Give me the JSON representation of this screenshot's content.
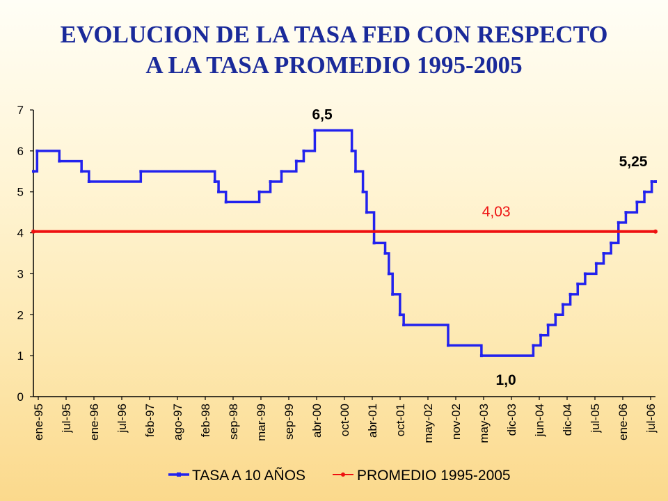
{
  "title_line1": "EVOLUCION DE LA TASA FED CON RESPECTO",
  "title_line2": "A LA TASA PROMEDIO 1995-2005",
  "colors": {
    "title": "#1a2a9a",
    "series_fed": "#2222ee",
    "series_avg": "#ee1111"
  },
  "chart_data": {
    "type": "line",
    "title": "EVOLUCION DE LA TASA FED CON RESPECTO A LA TASA PROMEDIO 1995-2005",
    "xlabel": "",
    "ylabel": "",
    "ylim": [
      0,
      7
    ],
    "yticks": [
      "0",
      "1",
      "2",
      "3",
      "4",
      "5",
      "6",
      "7"
    ],
    "grid": false,
    "legend_position": "bottom-center",
    "x_tick_labels": [
      "ene-95",
      "jul-95",
      "ene-96",
      "jul-96",
      "feb-97",
      "ago-97",
      "feb-98",
      "sep-98",
      "mar-99",
      "sep-99",
      "abr-00",
      "oct-00",
      "abr-01",
      "oct-01",
      "may-02",
      "nov-02",
      "may-03",
      "dic-03",
      "jun-04",
      "dic-04",
      "jul-05",
      "ene-06",
      "jul-06"
    ],
    "series": [
      {
        "name": "TASA A 10 AÑOS",
        "style": "step",
        "points": [
          [
            0,
            5.5
          ],
          [
            1,
            6
          ],
          [
            7,
            5.75
          ],
          [
            13,
            5.5
          ],
          [
            15,
            5.25
          ],
          [
            29,
            5.5
          ],
          [
            49,
            5.25
          ],
          [
            50,
            5
          ],
          [
            52,
            4.75
          ],
          [
            61,
            5
          ],
          [
            64,
            5.25
          ],
          [
            67,
            5.5
          ],
          [
            71,
            5.75
          ],
          [
            73,
            6
          ],
          [
            76,
            6.5
          ],
          [
            86,
            6
          ],
          [
            87,
            5.5
          ],
          [
            89,
            5
          ],
          [
            90,
            4.5
          ],
          [
            92,
            3.75
          ],
          [
            95,
            3.5
          ],
          [
            96,
            3
          ],
          [
            97,
            2.5
          ],
          [
            99,
            2
          ],
          [
            100,
            1.75
          ],
          [
            112,
            1.25
          ],
          [
            121,
            1
          ],
          [
            135,
            1.25
          ],
          [
            137,
            1.5
          ],
          [
            139,
            1.75
          ],
          [
            141,
            2
          ],
          [
            143,
            2.25
          ],
          [
            145,
            2.5
          ],
          [
            147,
            2.75
          ],
          [
            149,
            3
          ],
          [
            152,
            3.25
          ],
          [
            154,
            3.5
          ],
          [
            156,
            3.75
          ],
          [
            158,
            4.25
          ],
          [
            160,
            4.5
          ],
          [
            163,
            4.75
          ],
          [
            165,
            5
          ],
          [
            167,
            5.25
          ],
          [
            168,
            5.25
          ]
        ]
      },
      {
        "name": "PROMEDIO 1995-2005",
        "style": "line",
        "points": [
          [
            0,
            4.03
          ],
          [
            168,
            4.03
          ]
        ]
      }
    ],
    "x_range": [
      0,
      168
    ],
    "annotations": [
      {
        "text": "6,5",
        "x": 78,
        "y": 6.5
      },
      {
        "text": "4,03",
        "x": 125,
        "y": 4.03
      },
      {
        "text": "1,0",
        "x": 128,
        "y": 1.0
      },
      {
        "text": "5,25",
        "x": 165,
        "y": 5.25
      }
    ]
  }
}
